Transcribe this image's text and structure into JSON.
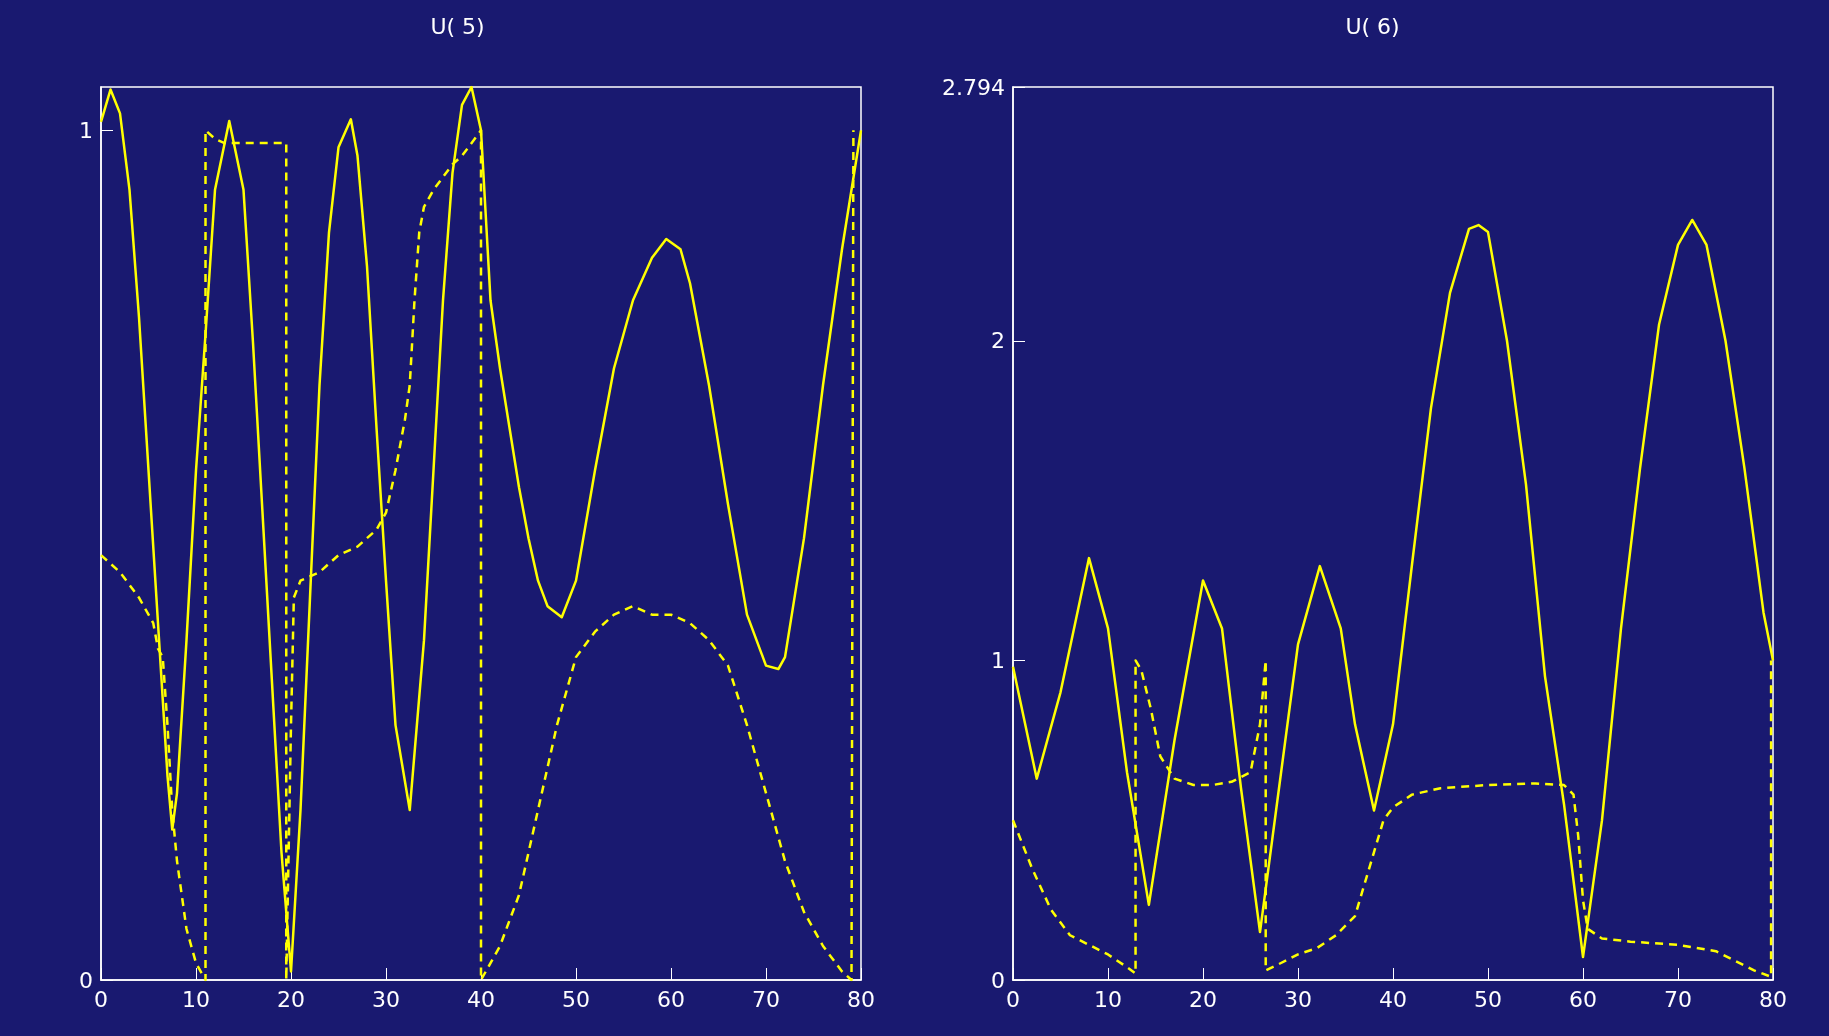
{
  "chart_data": [
    {
      "type": "line",
      "title": "U( 5)",
      "xlim": [
        0,
        80
      ],
      "xticks": [
        0,
        10,
        20,
        30,
        40,
        50,
        60,
        70,
        80
      ],
      "ylim": [
        0,
        1.051
      ],
      "yticks": [
        0,
        1
      ],
      "grid": false,
      "marker": "none",
      "series": [
        {
          "color": "#ffff00",
          "line_style": "solid",
          "x": [
            0,
            1,
            2,
            3,
            4,
            5,
            6,
            7,
            7.5,
            8,
            9,
            10,
            11,
            12,
            13.5,
            15,
            16,
            17,
            18,
            19,
            20,
            21,
            22,
            23,
            24,
            25,
            26.3,
            27,
            28,
            29,
            30,
            31,
            32.5,
            34,
            35,
            36,
            37,
            38,
            39,
            40,
            41,
            42,
            43,
            44,
            45,
            46,
            47,
            48.5,
            50,
            52,
            54,
            56,
            58,
            59.5,
            61,
            62,
            64,
            66,
            68,
            70,
            71.3,
            72,
            74,
            76,
            78,
            79,
            80
          ],
          "values": [
            1.01,
            1.048,
            1.02,
            0.93,
            0.78,
            0.6,
            0.42,
            0.24,
            0.177,
            0.22,
            0.4,
            0.6,
            0.76,
            0.93,
            1.011,
            0.93,
            0.75,
            0.55,
            0.35,
            0.15,
            0.01,
            0.2,
            0.45,
            0.7,
            0.88,
            0.98,
            1.013,
            0.97,
            0.84,
            0.65,
            0.47,
            0.3,
            0.2,
            0.4,
            0.6,
            0.8,
            0.95,
            1.03,
            1.051,
            1.0,
            0.8,
            0.72,
            0.65,
            0.58,
            0.52,
            0.47,
            0.44,
            0.427,
            0.47,
            0.6,
            0.72,
            0.8,
            0.85,
            0.872,
            0.86,
            0.82,
            0.7,
            0.56,
            0.43,
            0.37,
            0.366,
            0.38,
            0.52,
            0.7,
            0.86,
            0.93,
            1.0
          ]
        },
        {
          "color": "#ffff00",
          "line_style": "dashed",
          "x": [
            0,
            2,
            4,
            5.5,
            6,
            6.5,
            7,
            7.5,
            8,
            9,
            10,
            11,
            11,
            12,
            13,
            15,
            17,
            19.5,
            19.5,
            20,
            20.3,
            21,
            23,
            25,
            27,
            29,
            30,
            31,
            32,
            32.5,
            33,
            33.5,
            34,
            35,
            37,
            38,
            40,
            40,
            42,
            44,
            46,
            48,
            50,
            52,
            54,
            56,
            58,
            60,
            62,
            64,
            66,
            68,
            70,
            72,
            74,
            76,
            78,
            79,
            79.2
          ],
          "values": [
            0.5,
            0.48,
            0.45,
            0.42,
            0.39,
            0.38,
            0.3,
            0.2,
            0.14,
            0.06,
            0.02,
            0.0,
            1.0,
            0.99,
            0.985,
            0.985,
            0.985,
            0.985,
            0.0,
            0.3,
            0.45,
            0.47,
            0.48,
            0.5,
            0.51,
            0.53,
            0.55,
            0.6,
            0.66,
            0.7,
            0.8,
            0.88,
            0.91,
            0.93,
            0.96,
            0.97,
            1.0,
            0.0,
            0.04,
            0.1,
            0.2,
            0.3,
            0.38,
            0.41,
            0.43,
            0.44,
            0.43,
            0.43,
            0.42,
            0.4,
            0.37,
            0.3,
            0.22,
            0.14,
            0.08,
            0.04,
            0.01,
            0.0,
            1.0
          ]
        }
      ]
    },
    {
      "type": "line",
      "title": "U( 6)",
      "xlim": [
        0,
        80
      ],
      "xticks": [
        0,
        10,
        20,
        30,
        40,
        50,
        60,
        70,
        80
      ],
      "ylim": [
        0,
        2.794
      ],
      "yticks": [
        0,
        1,
        2,
        2.794
      ],
      "grid": false,
      "marker": "none",
      "series": [
        {
          "color": "#ffff00",
          "line_style": "solid",
          "x": [
            0,
            2.5,
            5,
            8,
            10,
            12,
            14.3,
            17,
            20,
            22,
            24,
            26,
            28,
            30,
            32.3,
            34.5,
            36,
            38,
            40,
            42,
            44,
            46,
            48,
            49,
            50,
            52,
            54,
            56,
            58,
            60,
            62,
            64,
            66,
            68,
            70,
            71.5,
            73,
            75,
            77,
            79,
            80
          ],
          "values": [
            0.98,
            0.63,
            0.9,
            1.32,
            1.1,
            0.65,
            0.235,
            0.75,
            1.25,
            1.1,
            0.6,
            0.15,
            0.6,
            1.05,
            1.295,
            1.1,
            0.8,
            0.53,
            0.8,
            1.3,
            1.79,
            2.15,
            2.35,
            2.362,
            2.34,
            2.0,
            1.55,
            0.95,
            0.55,
            0.072,
            0.5,
            1.1,
            1.6,
            2.05,
            2.3,
            2.378,
            2.3,
            2.0,
            1.6,
            1.15,
            1.0
          ]
        },
        {
          "color": "#ffff00",
          "line_style": "dashed",
          "x": [
            0,
            2,
            4,
            6,
            8,
            10,
            12,
            12.9,
            12.9,
            13.5,
            14.5,
            15.5,
            17,
            19,
            21,
            23,
            25,
            26,
            26.6,
            26.6,
            28,
            30,
            32,
            34,
            36,
            37,
            38,
            39,
            40,
            42,
            45,
            50,
            55,
            58,
            59,
            59.5,
            60,
            60.5,
            62,
            65,
            70,
            74,
            76,
            78,
            79.8,
            79.8
          ],
          "values": [
            0.5,
            0.35,
            0.22,
            0.14,
            0.11,
            0.08,
            0.04,
            0.02,
            1.0,
            0.97,
            0.85,
            0.7,
            0.63,
            0.61,
            0.61,
            0.62,
            0.65,
            0.8,
            1.0,
            0.03,
            0.05,
            0.08,
            0.1,
            0.14,
            0.2,
            0.3,
            0.4,
            0.5,
            0.54,
            0.58,
            0.6,
            0.61,
            0.615,
            0.61,
            0.58,
            0.45,
            0.25,
            0.16,
            0.13,
            0.12,
            0.11,
            0.09,
            0.06,
            0.03,
            0.01,
            1.0
          ]
        }
      ]
    }
  ]
}
